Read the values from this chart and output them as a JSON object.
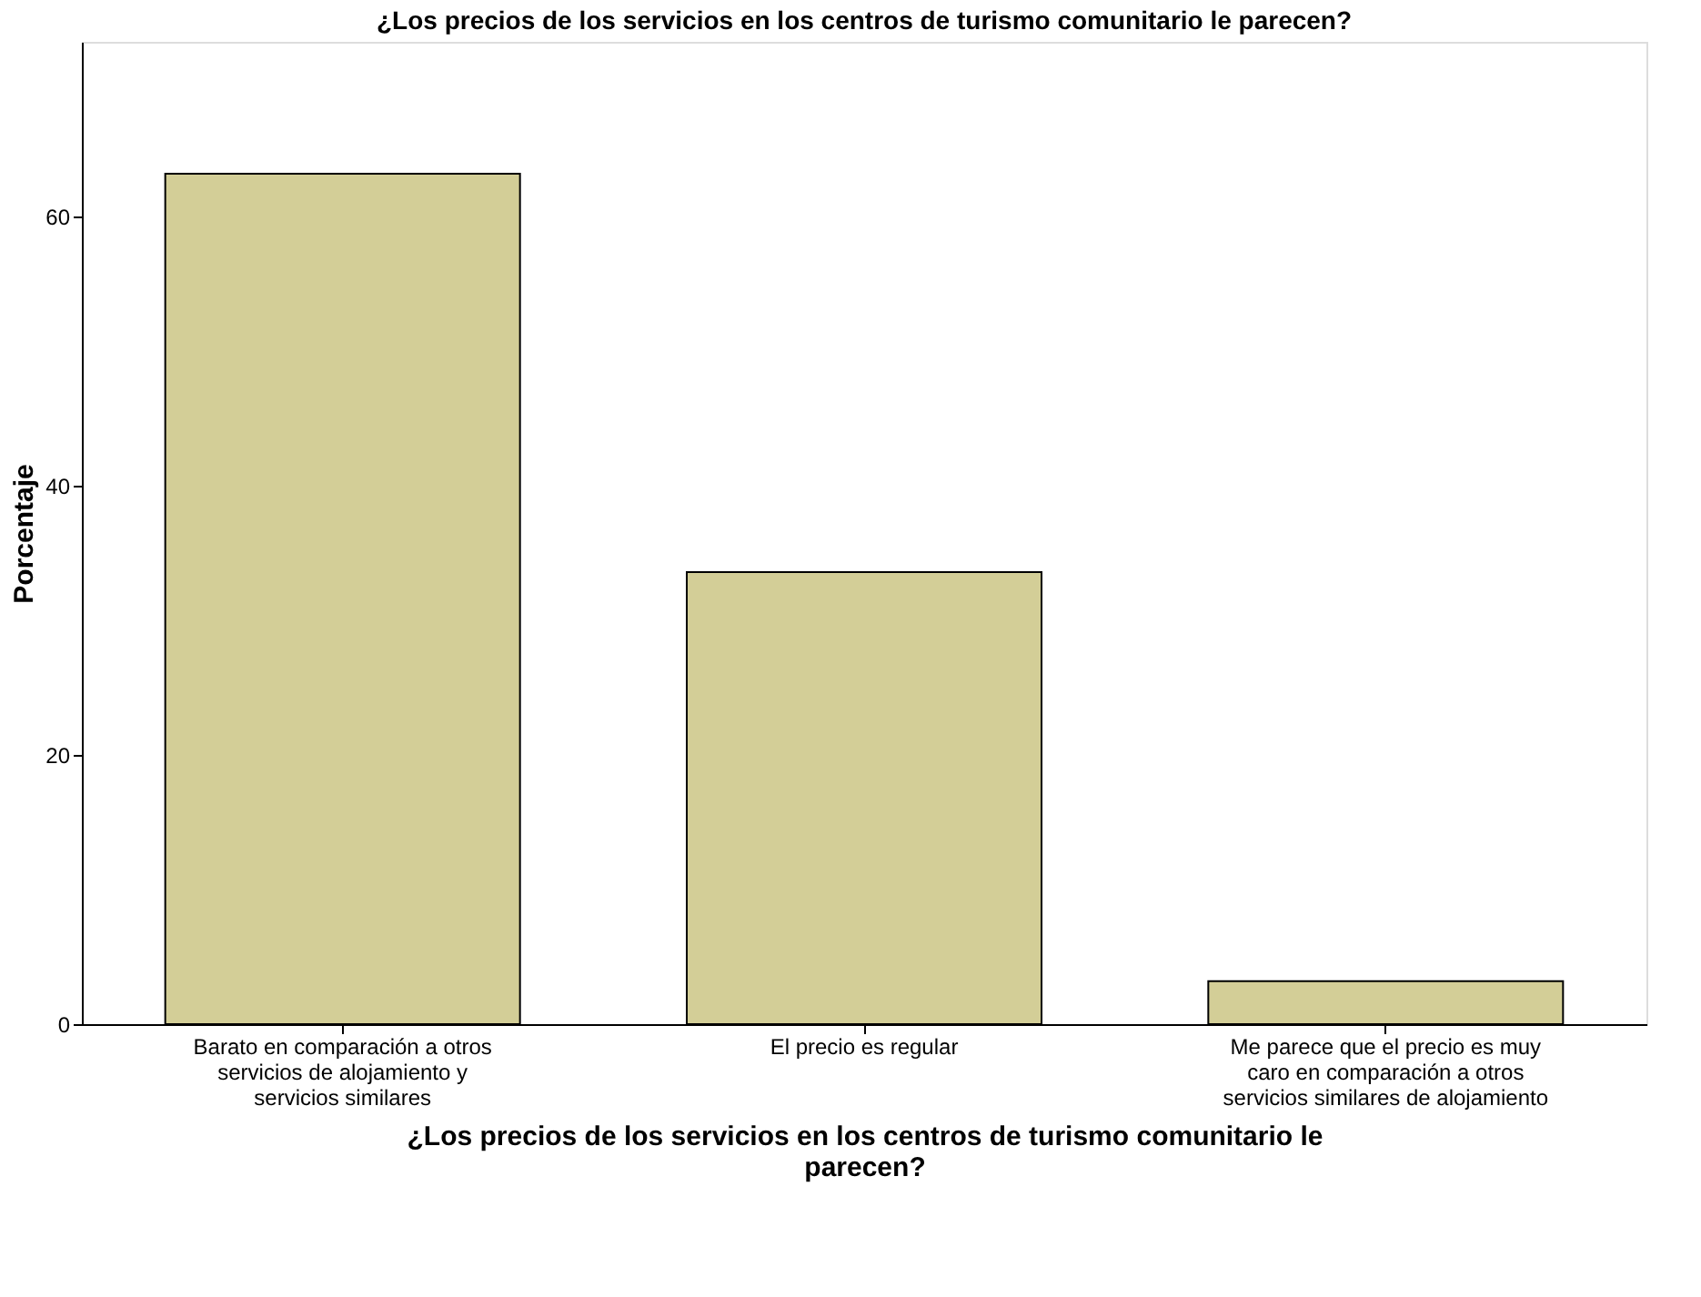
{
  "chart_data": {
    "type": "bar",
    "title": "¿Los precios de los servicios en los centros de turismo comunitario le parecen?",
    "categories": [
      "Barato en comparación a otros\nservicios de alojamiento y\nservicios similares",
      "El precio es regular",
      "Me parece que el precio es muy\ncaro en comparación a otros\nservicios similares de alojamiento"
    ],
    "values": [
      63.2,
      33.6,
      3.2
    ],
    "color": "#d3ce97",
    "xlabel": "¿Los precios de los servicios en los centros de turismo comunitario le\nparecen?",
    "ylabel": "Porcentaje",
    "ylim": [
      0,
      73
    ],
    "yticks": [
      0,
      20,
      40,
      60
    ],
    "grid": false
  }
}
